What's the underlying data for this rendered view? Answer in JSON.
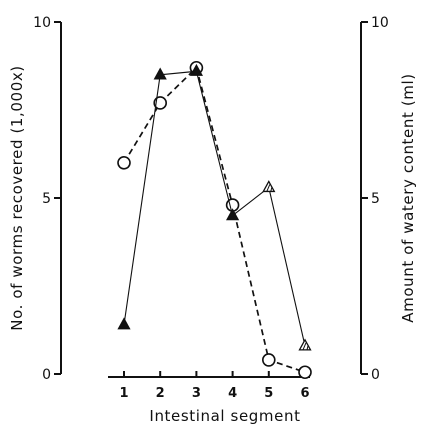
{
  "chart_data": {
    "type": "line",
    "xlabel": "Intestinal segment",
    "ylabel_left": "No. of worms recovered (1,000x)",
    "ylabel_right": "Amount of watery content (ml)",
    "categories": [
      "1",
      "2",
      "3",
      "4",
      "5",
      "6"
    ],
    "y_left": {
      "range": [
        0,
        10
      ],
      "ticks": [
        "0",
        "5",
        "10"
      ]
    },
    "y_right": {
      "range": [
        0,
        10
      ],
      "ticks": [
        "0",
        "5",
        "10"
      ]
    },
    "series": [
      {
        "marker": "circle-open",
        "line_style": "dashed",
        "axis": "left",
        "values": [
          6.0,
          7.7,
          8.7,
          4.8,
          0.4,
          0.05
        ]
      },
      {
        "marker": "triangle",
        "line_style": "solid",
        "axis": "right",
        "values": [
          1.4,
          8.5,
          8.6,
          4.5,
          5.3,
          0.8
        ]
      }
    ],
    "grid": false,
    "legend": "none",
    "colors": {
      "ink": "#111111",
      "background": "#ffffff"
    }
  }
}
